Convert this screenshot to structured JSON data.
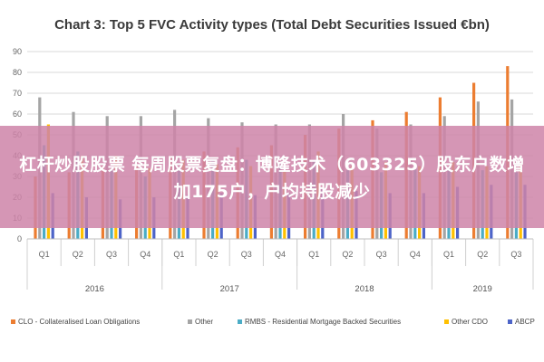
{
  "chart_data": {
    "type": "bar",
    "title": "Chart 3: Top 5 FVC Activity types (Total Debt Securities Issued €bn)",
    "xlabel": "",
    "ylabel": "",
    "ylim": [
      0,
      90
    ],
    "yticks": [
      0,
      10,
      20,
      30,
      40,
      50,
      60,
      70,
      80,
      90
    ],
    "grid": true,
    "legend_position": "bottom",
    "categories": [
      "Q1",
      "Q2",
      "Q3",
      "Q4",
      "Q1",
      "Q2",
      "Q3",
      "Q4",
      "Q1",
      "Q2",
      "Q3",
      "Q4",
      "Q1",
      "Q2",
      "Q3"
    ],
    "years": [
      {
        "label": "2016",
        "quarters": 4
      },
      {
        "label": "2017",
        "quarters": 4
      },
      {
        "label": "2018",
        "quarters": 4
      },
      {
        "label": "2019",
        "quarters": 3
      }
    ],
    "series": [
      {
        "name": "CLO - Collateralised Loan Obligations",
        "color": "#ec7d31",
        "values": [
          30,
          32,
          35,
          35,
          40,
          42,
          44,
          45,
          50,
          53,
          57,
          61,
          68,
          75,
          83
        ]
      },
      {
        "name": "Other",
        "color": "#a5a5a5",
        "values": [
          68,
          61,
          59,
          59,
          62,
          58,
          56,
          55,
          55,
          60,
          53,
          55,
          59,
          66,
          67
        ]
      },
      {
        "name": "RMBS - Residential Mortgage Backed Securities",
        "color": "#4bacc6",
        "values": [
          45,
          42,
          33,
          30,
          33,
          38,
          38,
          36,
          38,
          33,
          32,
          36,
          34,
          33,
          32
        ]
      },
      {
        "name": "Other CDO",
        "color": "#ffc000",
        "values": [
          55,
          40,
          40,
          34,
          38,
          36,
          35,
          33,
          42,
          35,
          37,
          35,
          37,
          35,
          36
        ]
      },
      {
        "name": "ABCP",
        "color": "#4d64c8",
        "values": [
          22,
          20,
          19,
          20,
          21,
          22,
          21,
          22,
          24,
          23,
          22,
          22,
          25,
          26,
          26
        ]
      }
    ]
  },
  "overlay": {
    "text": "杠杆炒股股票 每周股票复盘：博隆技术（603325）股东户数增加175户，户均持股减少"
  }
}
